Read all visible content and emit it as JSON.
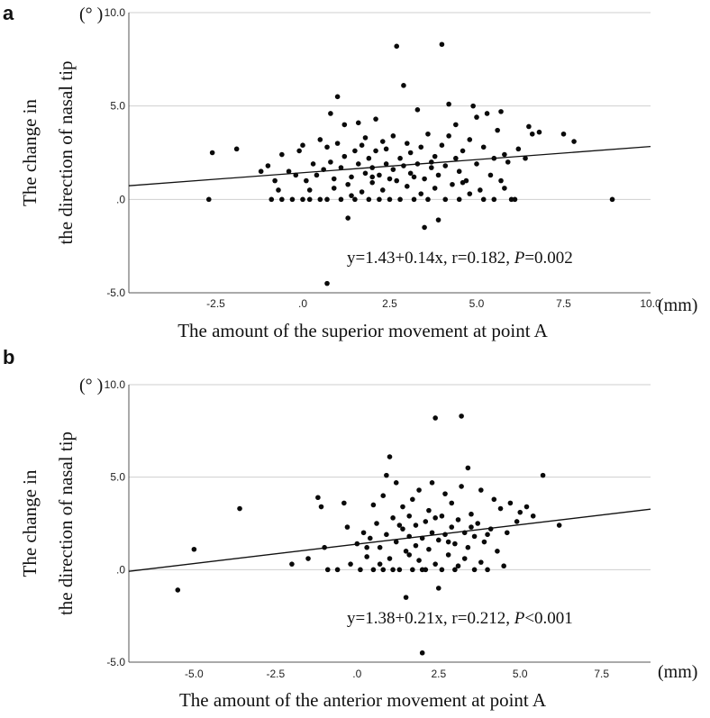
{
  "chart_data": [
    {
      "panel": "a",
      "type": "scatter",
      "xlabel": "The amount of the superior movement at point A",
      "xunit": "(mm)",
      "ylabel_line1": "The change in",
      "ylabel_line2": "the direction of nasal  tip",
      "yunit": "(°  )",
      "xlim": [
        -5.0,
        10.0
      ],
      "ylim": [
        -5.0,
        10.0
      ],
      "xticks": [
        -2.5,
        0.0,
        2.5,
        5.0,
        7.5,
        10.0
      ],
      "xtick_labels": [
        "-2.5",
        ".0",
        "2.5",
        "5.0",
        "7.5",
        "10.0"
      ],
      "yticks": [
        -5.0,
        0.0,
        5.0,
        10.0
      ],
      "ytick_labels": [
        "-5.0",
        ".0",
        "5.0",
        "10.0"
      ],
      "grid": "horizontal",
      "fit": {
        "intercept": 1.43,
        "slope": 0.14,
        "equation_prefix": "y=1.43+0.14x, r=0.182, ",
        "p_symbol": "P",
        "p_value": "=0.002"
      },
      "points": [
        [
          -2.7,
          0.0
        ],
        [
          -2.6,
          2.5
        ],
        [
          -1.9,
          2.7
        ],
        [
          -1.2,
          1.5
        ],
        [
          -1.0,
          1.8
        ],
        [
          -0.9,
          0.0
        ],
        [
          -0.8,
          1.0
        ],
        [
          -0.7,
          0.5
        ],
        [
          -0.6,
          2.4
        ],
        [
          -0.6,
          0.0
        ],
        [
          -0.4,
          1.5
        ],
        [
          -0.3,
          0.0
        ],
        [
          -0.2,
          1.3
        ],
        [
          -0.1,
          2.6
        ],
        [
          0.0,
          2.9
        ],
        [
          0.1,
          1.0
        ],
        [
          0.2,
          0.5
        ],
        [
          0.2,
          0.0
        ],
        [
          0.3,
          1.9
        ],
        [
          0.4,
          1.3
        ],
        [
          0.5,
          0.0
        ],
        [
          0.5,
          3.2
        ],
        [
          0.6,
          1.6
        ],
        [
          0.7,
          2.8
        ],
        [
          0.7,
          0.0
        ],
        [
          0.8,
          4.6
        ],
        [
          0.8,
          2.0
        ],
        [
          0.9,
          1.1
        ],
        [
          0.9,
          0.6
        ],
        [
          1.0,
          5.5
        ],
        [
          1.0,
          3.0
        ],
        [
          1.1,
          0.0
        ],
        [
          1.1,
          1.7
        ],
        [
          1.2,
          4.0
        ],
        [
          1.2,
          2.3
        ],
        [
          1.3,
          0.8
        ],
        [
          1.3,
          -1.0
        ],
        [
          1.4,
          1.2
        ],
        [
          1.5,
          2.6
        ],
        [
          1.5,
          0.0
        ],
        [
          1.6,
          1.9
        ],
        [
          1.6,
          4.1
        ],
        [
          1.7,
          0.4
        ],
        [
          1.8,
          3.3
        ],
        [
          1.8,
          1.4
        ],
        [
          1.9,
          0.0
        ],
        [
          1.9,
          2.2
        ],
        [
          2.0,
          1.7
        ],
        [
          2.0,
          0.9
        ],
        [
          2.1,
          4.3
        ],
        [
          2.1,
          2.6
        ],
        [
          2.2,
          0.0
        ],
        [
          2.2,
          1.3
        ],
        [
          2.3,
          3.1
        ],
        [
          2.3,
          0.5
        ],
        [
          2.4,
          1.9
        ],
        [
          2.4,
          2.7
        ],
        [
          2.5,
          0.0
        ],
        [
          2.6,
          1.6
        ],
        [
          2.6,
          3.4
        ],
        [
          2.7,
          8.2
        ],
        [
          2.7,
          1.0
        ],
        [
          2.8,
          2.2
        ],
        [
          2.8,
          0.0
        ],
        [
          2.9,
          6.1
        ],
        [
          2.9,
          1.8
        ],
        [
          3.0,
          3.0
        ],
        [
          3.0,
          0.7
        ],
        [
          3.1,
          1.4
        ],
        [
          3.1,
          2.5
        ],
        [
          3.2,
          0.0
        ],
        [
          3.3,
          4.8
        ],
        [
          3.3,
          1.9
        ],
        [
          3.4,
          0.3
        ],
        [
          3.4,
          2.8
        ],
        [
          3.5,
          -1.5
        ],
        [
          3.5,
          1.1
        ],
        [
          3.6,
          3.5
        ],
        [
          3.6,
          0.0
        ],
        [
          3.7,
          1.7
        ],
        [
          3.8,
          2.3
        ],
        [
          3.8,
          0.6
        ],
        [
          3.9,
          -1.1
        ],
        [
          3.9,
          1.3
        ],
        [
          4.0,
          8.3
        ],
        [
          4.0,
          2.9
        ],
        [
          4.1,
          0.0
        ],
        [
          4.1,
          1.8
        ],
        [
          4.2,
          5.1
        ],
        [
          4.2,
          3.4
        ],
        [
          4.3,
          0.8
        ],
        [
          4.4,
          2.2
        ],
        [
          4.4,
          4.0
        ],
        [
          4.5,
          1.5
        ],
        [
          4.5,
          0.0
        ],
        [
          4.6,
          2.6
        ],
        [
          4.7,
          1.0
        ],
        [
          4.8,
          3.2
        ],
        [
          4.8,
          0.3
        ],
        [
          4.9,
          5.0
        ],
        [
          5.0,
          1.9
        ],
        [
          5.0,
          4.4
        ],
        [
          5.1,
          0.5
        ],
        [
          5.2,
          2.8
        ],
        [
          5.2,
          0.0
        ],
        [
          5.3,
          4.6
        ],
        [
          5.4,
          1.3
        ],
        [
          5.5,
          2.2
        ],
        [
          5.5,
          0.0
        ],
        [
          5.6,
          3.7
        ],
        [
          5.7,
          1.0
        ],
        [
          5.7,
          4.7
        ],
        [
          5.8,
          0.6
        ],
        [
          5.9,
          2.0
        ],
        [
          6.0,
          0.0
        ],
        [
          6.1,
          0.0
        ],
        [
          6.2,
          2.7
        ],
        [
          6.4,
          2.2
        ],
        [
          6.5,
          3.9
        ],
        [
          6.6,
          3.5
        ],
        [
          6.8,
          3.6
        ],
        [
          7.5,
          3.5
        ],
        [
          7.8,
          3.1
        ],
        [
          8.9,
          0.0
        ],
        [
          0.7,
          -4.5
        ],
        [
          2.0,
          1.2
        ],
        [
          1.4,
          0.2
        ],
        [
          3.2,
          1.2
        ],
        [
          4.6,
          0.9
        ],
        [
          0.0,
          0.0
        ],
        [
          1.7,
          2.9
        ],
        [
          2.5,
          1.1
        ],
        [
          3.7,
          2.0
        ],
        [
          5.8,
          2.4
        ]
      ]
    },
    {
      "panel": "b",
      "type": "scatter",
      "xlabel": "The amount of the anterior movement at point A",
      "xunit": "(mm)",
      "ylabel_line1": "The change in",
      "ylabel_line2": "the direction of nasal  tip",
      "yunit": "(°  )",
      "xlim": [
        -7.0,
        9.0
      ],
      "ylim": [
        -5.0,
        10.0
      ],
      "xticks": [
        -5.0,
        -2.5,
        0.0,
        2.5,
        5.0,
        7.5
      ],
      "xtick_labels": [
        "-5.0",
        "-2.5",
        ".0",
        "2.5",
        "5.0",
        "7.5"
      ],
      "yticks": [
        -5.0,
        0.0,
        5.0,
        10.0
      ],
      "ytick_labels": [
        "-5.0",
        ".0",
        "5.0",
        "10.0"
      ],
      "grid": "horizontal",
      "fit": {
        "intercept": 1.38,
        "slope": 0.21,
        "equation_prefix": "y=1.38+0.21x, r=0.212, ",
        "p_symbol": "P",
        "p_value": "<0.001"
      },
      "points": [
        [
          -5.5,
          -1.1
        ],
        [
          -5.0,
          1.1
        ],
        [
          -3.6,
          3.3
        ],
        [
          -2.0,
          0.3
        ],
        [
          -1.5,
          0.6
        ],
        [
          -1.2,
          3.9
        ],
        [
          -1.1,
          3.4
        ],
        [
          -1.0,
          1.2
        ],
        [
          -0.9,
          0.0
        ],
        [
          -0.6,
          0.0
        ],
        [
          -0.4,
          3.6
        ],
        [
          -0.3,
          2.3
        ],
        [
          -0.2,
          0.3
        ],
        [
          0.0,
          1.4
        ],
        [
          0.1,
          0.0
        ],
        [
          0.2,
          2.0
        ],
        [
          0.3,
          0.7
        ],
        [
          0.4,
          1.7
        ],
        [
          0.5,
          3.5
        ],
        [
          0.5,
          0.0
        ],
        [
          0.6,
          2.5
        ],
        [
          0.7,
          1.2
        ],
        [
          0.8,
          4.0
        ],
        [
          0.8,
          0.0
        ],
        [
          0.9,
          5.1
        ],
        [
          0.9,
          1.9
        ],
        [
          1.0,
          6.1
        ],
        [
          1.0,
          0.6
        ],
        [
          1.1,
          2.8
        ],
        [
          1.2,
          1.5
        ],
        [
          1.2,
          4.7
        ],
        [
          1.3,
          0.0
        ],
        [
          1.4,
          2.2
        ],
        [
          1.4,
          3.4
        ],
        [
          1.5,
          1.0
        ],
        [
          1.5,
          -1.5
        ],
        [
          1.6,
          1.8
        ],
        [
          1.6,
          2.9
        ],
        [
          1.7,
          0.0
        ],
        [
          1.7,
          3.8
        ],
        [
          1.8,
          1.3
        ],
        [
          1.8,
          2.4
        ],
        [
          1.9,
          0.5
        ],
        [
          1.9,
          4.3
        ],
        [
          2.0,
          -4.5
        ],
        [
          2.0,
          1.7
        ],
        [
          2.1,
          2.6
        ],
        [
          2.1,
          0.0
        ],
        [
          2.2,
          3.2
        ],
        [
          2.2,
          1.1
        ],
        [
          2.3,
          4.7
        ],
        [
          2.3,
          2.0
        ],
        [
          2.4,
          8.2
        ],
        [
          2.4,
          0.3
        ],
        [
          2.5,
          -1.0
        ],
        [
          2.5,
          1.6
        ],
        [
          2.6,
          2.9
        ],
        [
          2.6,
          0.0
        ],
        [
          2.7,
          4.1
        ],
        [
          2.7,
          1.9
        ],
        [
          2.8,
          0.8
        ],
        [
          2.9,
          2.3
        ],
        [
          2.9,
          3.6
        ],
        [
          3.0,
          0.0
        ],
        [
          3.0,
          1.4
        ],
        [
          3.1,
          2.7
        ],
        [
          3.2,
          8.3
        ],
        [
          3.2,
          4.5
        ],
        [
          3.3,
          0.6
        ],
        [
          3.3,
          2.0
        ],
        [
          3.4,
          5.5
        ],
        [
          3.4,
          1.2
        ],
        [
          3.5,
          3.0
        ],
        [
          3.6,
          0.0
        ],
        [
          3.6,
          1.8
        ],
        [
          3.7,
          2.5
        ],
        [
          3.8,
          0.4
        ],
        [
          3.8,
          4.3
        ],
        [
          3.9,
          1.5
        ],
        [
          4.0,
          0.0
        ],
        [
          4.1,
          2.2
        ],
        [
          4.2,
          3.8
        ],
        [
          4.3,
          1.0
        ],
        [
          4.4,
          3.3
        ],
        [
          4.5,
          0.2
        ],
        [
          4.6,
          2.0
        ],
        [
          4.7,
          3.6
        ],
        [
          4.9,
          2.6
        ],
        [
          5.0,
          3.1
        ],
        [
          5.2,
          3.4
        ],
        [
          5.4,
          2.9
        ],
        [
          5.7,
          5.1
        ],
        [
          6.2,
          2.4
        ],
        [
          1.1,
          0.0
        ],
        [
          2.0,
          0.0
        ],
        [
          2.8,
          1.5
        ],
        [
          1.6,
          0.8
        ],
        [
          3.1,
          0.2
        ],
        [
          0.3,
          1.2
        ],
        [
          2.4,
          2.8
        ],
        [
          1.3,
          2.4
        ],
        [
          3.5,
          2.3
        ],
        [
          4.0,
          1.9
        ],
        [
          0.7,
          0.3
        ]
      ]
    }
  ]
}
